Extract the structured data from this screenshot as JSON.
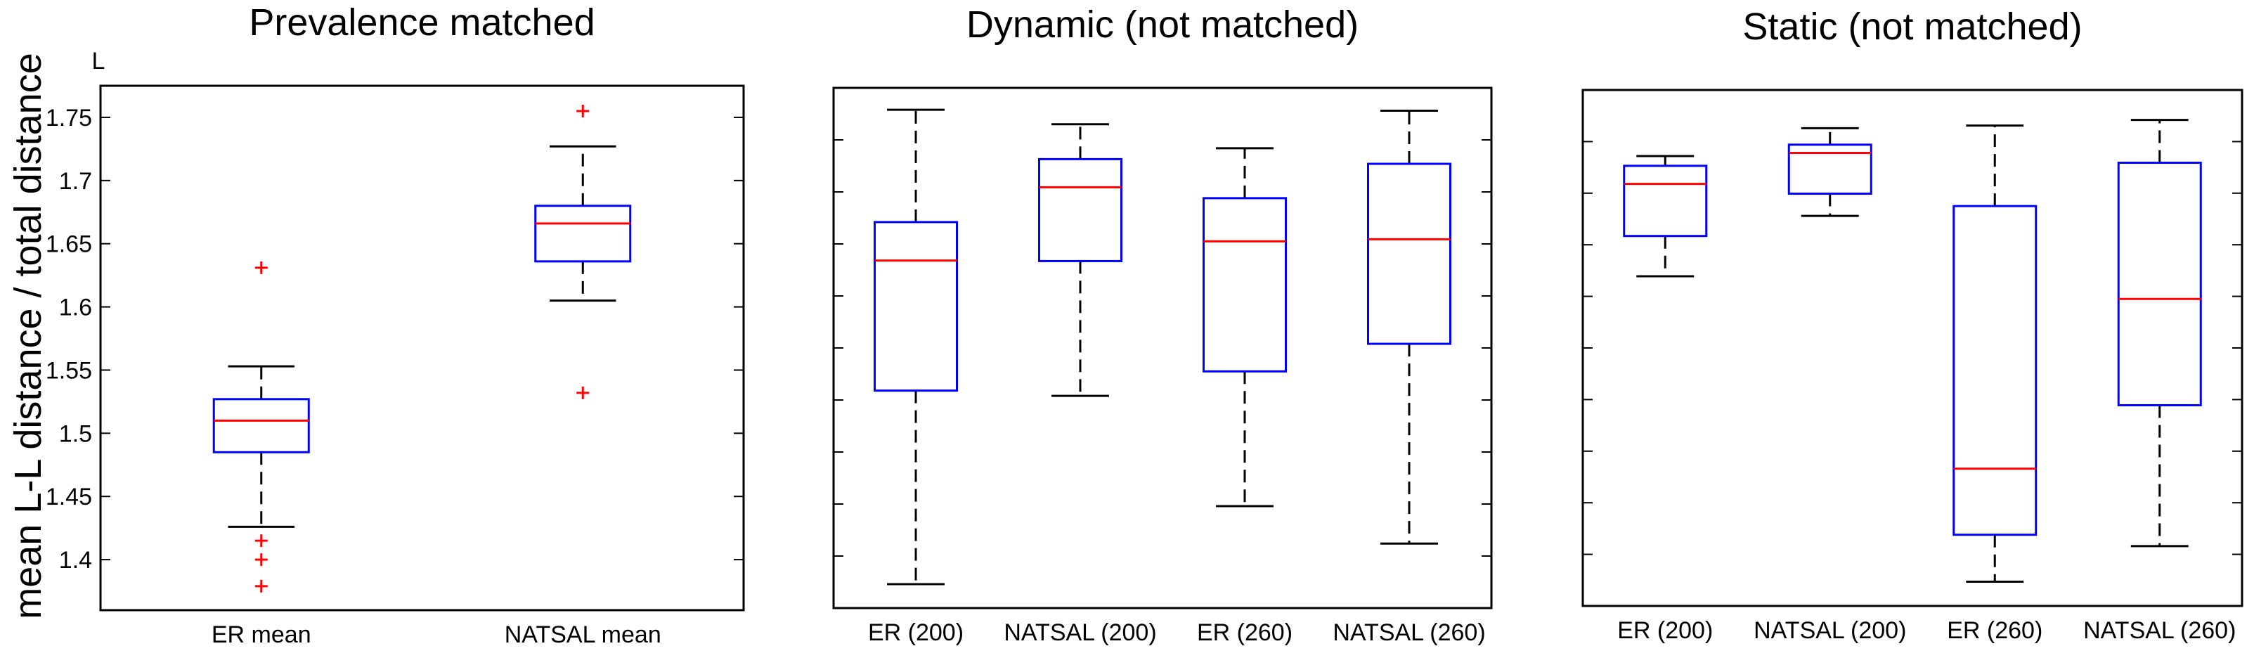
{
  "ylabel": "mean L-L distance / total distance",
  "corner_label": "L",
  "colors": {
    "box": "#0000ff",
    "median": "#ff0000",
    "whisker": "#000000",
    "outlier": "#ff0000"
  },
  "chart_data": [
    {
      "type": "boxplot",
      "title": "Prevalence matched",
      "categories": [
        "ER mean",
        "NATSAL mean"
      ],
      "ylim": [
        1.36,
        1.775
      ],
      "yticks": [
        1.4,
        1.45,
        1.5,
        1.55,
        1.6,
        1.65,
        1.7,
        1.75
      ],
      "ytick_labels": [
        "1.4",
        "1.45",
        "1.5",
        "1.55",
        "1.6",
        "1.65",
        "1.7",
        "1.75"
      ],
      "grid": false,
      "boxes": [
        {
          "q1": 1.485,
          "median": 1.51,
          "q3": 1.527,
          "whislo": 1.426,
          "whishi": 1.553,
          "fliers": [
            1.631,
            1.415,
            1.4,
            1.379
          ]
        },
        {
          "q1": 1.636,
          "median": 1.666,
          "q3": 1.68,
          "whislo": 1.605,
          "whishi": 1.727,
          "fliers": [
            1.755,
            1.532
          ]
        }
      ]
    },
    {
      "type": "boxplot",
      "title": "Dynamic (not matched)",
      "categories": [
        "ER (200)",
        "NATSAL (200)",
        "ER (260)",
        "NATSAL (260)"
      ],
      "ylim": [
        0,
        100
      ],
      "grid": false,
      "boxes": [
        {
          "q1": 41.8,
          "median": 66.8,
          "q3": 74.2,
          "whislo": 4.6,
          "whishi": 95.8,
          "fliers": []
        },
        {
          "q1": 66.7,
          "median": 80.9,
          "q3": 86.3,
          "whislo": 40.8,
          "whishi": 93.0,
          "fliers": []
        },
        {
          "q1": 45.5,
          "median": 70.5,
          "q3": 78.8,
          "whislo": 19.6,
          "whishi": 88.4,
          "fliers": []
        },
        {
          "q1": 50.8,
          "median": 70.9,
          "q3": 85.4,
          "whislo": 12.4,
          "whishi": 95.6,
          "fliers": []
        }
      ]
    },
    {
      "type": "boxplot",
      "title": "Static (not matched)",
      "categories": [
        "ER (200)",
        "NATSAL (200)",
        "ER (260)",
        "NATSAL (260)"
      ],
      "ylim": [
        0,
        100
      ],
      "grid": false,
      "boxes": [
        {
          "q1": 71.7,
          "median": 81.8,
          "q3": 85.3,
          "whislo": 63.9,
          "whishi": 87.2,
          "fliers": []
        },
        {
          "q1": 79.9,
          "median": 87.8,
          "q3": 89.4,
          "whislo": 75.6,
          "whishi": 92.6,
          "fliers": []
        },
        {
          "q1": 13.8,
          "median": 26.6,
          "q3": 77.5,
          "whislo": 4.7,
          "whishi": 93.1,
          "fliers": []
        },
        {
          "q1": 38.9,
          "median": 59.5,
          "q3": 85.9,
          "whislo": 11.6,
          "whishi": 94.2,
          "fliers": []
        }
      ]
    }
  ]
}
